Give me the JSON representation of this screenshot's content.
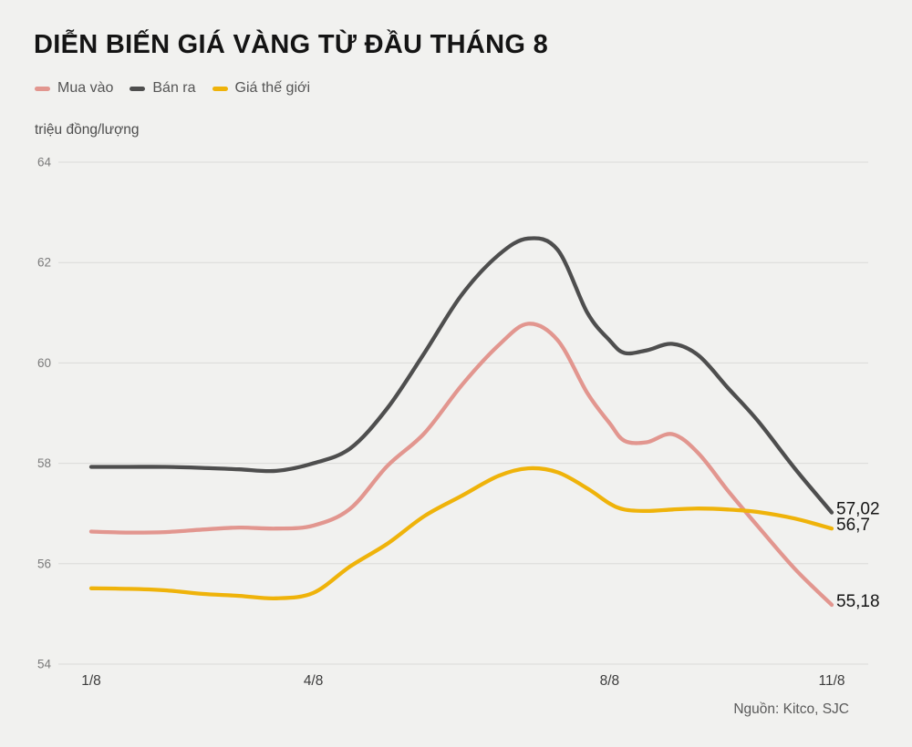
{
  "title": "DIỄN BIẾN GIÁ VÀNG TỪ ĐẦU THÁNG 8",
  "source": "Nguồn: Kitco, SJC",
  "colors": {
    "background": "#f1f1ef",
    "grid": "#dadad8",
    "title_text": "#141414",
    "legend_text": "#555555",
    "y_tick_text": "#7b7b7b",
    "x_tick_text": "#3c3c3c",
    "value_label_text": "#151515",
    "source_text": "#5a5a5a"
  },
  "y_axis": {
    "unit": "triệu đồng/lượng",
    "ticks": [
      64,
      62,
      60,
      58,
      56,
      54
    ]
  },
  "x_axis": {
    "ticks": [
      {
        "label": "1/8",
        "day": 1
      },
      {
        "label": "4/8",
        "day": 4
      },
      {
        "label": "8/8",
        "day": 8
      },
      {
        "label": "11/8",
        "day": 11
      }
    ]
  },
  "chart_data": {
    "type": "line",
    "title": "DIỄN BIẾN GIÁ VÀNG TỪ ĐẦU THÁNG 8",
    "ylabel": "triệu đồng/lượng",
    "xlabel": "",
    "ylim": [
      54,
      64
    ],
    "xlim_days": [
      1,
      11
    ],
    "grid": "horizontal",
    "legend_position": "top-left",
    "x": [
      1,
      1.5,
      2,
      2.5,
      3,
      3.5,
      4,
      4.5,
      5,
      5.5,
      6,
      6.5,
      6.9,
      7.3,
      7.7,
      8,
      8.2,
      8.5,
      8.85,
      9.2,
      9.6,
      10,
      10.5,
      11
    ],
    "series": [
      {
        "name": "Mua vào",
        "color": "#e2968f",
        "end_label": "55,18",
        "end_value": 55.18,
        "values": [
          56.64,
          56.62,
          56.63,
          56.68,
          56.72,
          56.7,
          56.76,
          57.1,
          57.95,
          58.6,
          59.55,
          60.35,
          60.78,
          60.45,
          59.4,
          58.8,
          58.45,
          58.42,
          58.58,
          58.2,
          57.45,
          56.75,
          55.9,
          55.18
        ]
      },
      {
        "name": "Bán ra",
        "color": "#4e4e4e",
        "end_label": "57,02",
        "end_value": 57.02,
        "values": [
          57.93,
          57.93,
          57.93,
          57.91,
          57.88,
          57.85,
          58.0,
          58.3,
          59.1,
          60.2,
          61.35,
          62.15,
          62.48,
          62.25,
          61.0,
          60.45,
          60.2,
          60.25,
          60.38,
          60.15,
          59.5,
          58.85,
          57.9,
          57.02
        ]
      },
      {
        "name": "Giá thế giới",
        "color": "#efb30a",
        "end_label": "56,7",
        "end_value": 56.7,
        "values": [
          55.51,
          55.5,
          55.47,
          55.4,
          55.36,
          55.31,
          55.42,
          55.95,
          56.4,
          56.95,
          57.35,
          57.75,
          57.9,
          57.82,
          57.5,
          57.2,
          57.08,
          57.05,
          57.08,
          57.1,
          57.08,
          57.03,
          56.9,
          56.7
        ]
      }
    ]
  }
}
